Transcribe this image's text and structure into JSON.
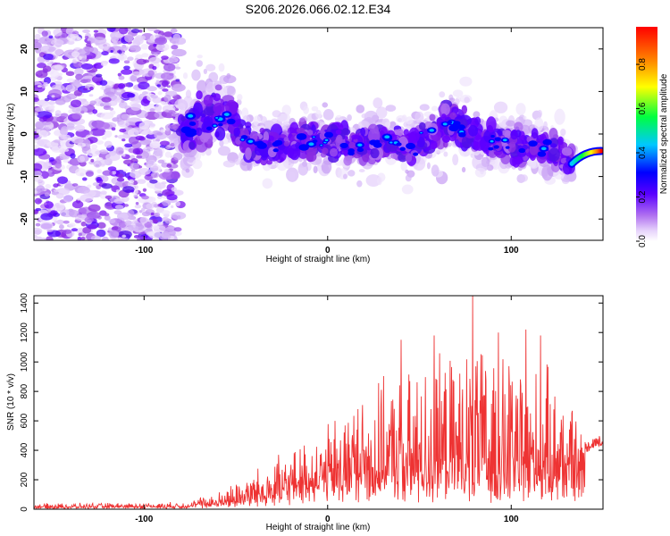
{
  "title": "S206.2026.066.02.12.E34",
  "chart_data": [
    {
      "type": "heatmap",
      "title": "S206.2026.066.02.12.E34",
      "xlabel": "Height of straight line (km)",
      "ylabel": "Frequency (Hz)",
      "xlim": [
        -160,
        150
      ],
      "ylim": [
        -25,
        25
      ],
      "x_ticks": [
        -100,
        0,
        100
      ],
      "y_ticks": [
        -20,
        -10,
        0,
        10,
        20
      ],
      "x_tick_labels": [
        "-100",
        "0",
        "100"
      ],
      "y_tick_labels": [
        "-20",
        "-10",
        "0",
        "10",
        "20"
      ],
      "colorbar": {
        "label": "Normalized spectral amplitude",
        "range": [
          0.0,
          0.97
        ],
        "ticks": [
          0.0,
          0.2,
          0.4,
          0.6,
          0.8
        ],
        "tick_labels": [
          "0.0",
          "0.2",
          "0.4",
          "0.6",
          "0.8"
        ],
        "colormap": [
          "#ffffff",
          "#d8b8f8",
          "#8a2be2",
          "#5a00ff",
          "#0000ff",
          "#00e0ff",
          "#00ff40",
          "#ffff00",
          "#ff8000",
          "#ff0000"
        ]
      },
      "ridge": [
        {
          "x": -78,
          "y": 0,
          "w": 7
        },
        {
          "x": -70,
          "y": 3,
          "w": 8
        },
        {
          "x": -60,
          "y": 5,
          "w": 8
        },
        {
          "x": -52,
          "y": 4,
          "w": 6
        },
        {
          "x": -45,
          "y": -2,
          "w": 5
        },
        {
          "x": -35,
          "y": -3,
          "w": 5
        },
        {
          "x": -25,
          "y": -3,
          "w": 5
        },
        {
          "x": -15,
          "y": -1,
          "w": 5
        },
        {
          "x": -5,
          "y": -2,
          "w": 5
        },
        {
          "x": 5,
          "y": -2,
          "w": 5
        },
        {
          "x": 15,
          "y": -3,
          "w": 5
        },
        {
          "x": 25,
          "y": -2,
          "w": 5
        },
        {
          "x": 35,
          "y": -2,
          "w": 5
        },
        {
          "x": 45,
          "y": -3,
          "w": 5
        },
        {
          "x": 55,
          "y": -1,
          "w": 5
        },
        {
          "x": 65,
          "y": 3,
          "w": 7
        },
        {
          "x": 75,
          "y": 1,
          "w": 6
        },
        {
          "x": 85,
          "y": -2,
          "w": 5
        },
        {
          "x": 95,
          "y": -2,
          "w": 5
        },
        {
          "x": 105,
          "y": -3,
          "w": 5
        },
        {
          "x": 115,
          "y": -3,
          "w": 4
        },
        {
          "x": 125,
          "y": -4,
          "w": 5
        },
        {
          "x": 132,
          "y": -6,
          "w": 4
        },
        {
          "x": 140,
          "y": -5,
          "w": 2
        },
        {
          "x": 147,
          "y": -4,
          "w": 1
        }
      ],
      "peak": {
        "x": 147,
        "y": -4,
        "value": 0.97
      }
    },
    {
      "type": "line",
      "xlabel": "Height of straight line (km)",
      "ylabel": "SNR (10 * v/v)",
      "xlim": [
        -160,
        150
      ],
      "ylim": [
        0,
        1450
      ],
      "x_ticks": [
        -100,
        0,
        100
      ],
      "y_ticks": [
        0,
        200,
        400,
        600,
        800,
        1000,
        1200,
        1400
      ],
      "x_tick_labels": [
        "-100",
        "0",
        "100"
      ],
      "y_tick_labels": [
        "0",
        "200",
        "400",
        "600",
        "800",
        "1000",
        "1200",
        "1400"
      ],
      "color": "#ee3333",
      "envelope": {
        "x": [
          -160,
          -80,
          -60,
          -50,
          -40,
          -30,
          -20,
          -10,
          0,
          10,
          20,
          30,
          40,
          50,
          60,
          70,
          80,
          90,
          100,
          110,
          120,
          130,
          135,
          140,
          145,
          150
        ],
        "base": [
          15,
          20,
          40,
          60,
          90,
          120,
          150,
          170,
          200,
          210,
          220,
          230,
          230,
          240,
          230,
          240,
          250,
          240,
          240,
          230,
          220,
          200,
          200,
          420,
          450,
          470
        ],
        "max": [
          40,
          50,
          120,
          200,
          280,
          350,
          420,
          500,
          600,
          750,
          850,
          900,
          950,
          1000,
          1050,
          1100,
          1150,
          1100,
          1050,
          1000,
          1000,
          900,
          650,
          560,
          530,
          520
        ]
      },
      "peaks": [
        {
          "x": 40,
          "y": 1150
        },
        {
          "x": 58,
          "y": 1180
        },
        {
          "x": 79,
          "y": 1450
        },
        {
          "x": 93,
          "y": 1200
        },
        {
          "x": 108,
          "y": 1220
        },
        {
          "x": 116,
          "y": 1180
        }
      ]
    }
  ]
}
